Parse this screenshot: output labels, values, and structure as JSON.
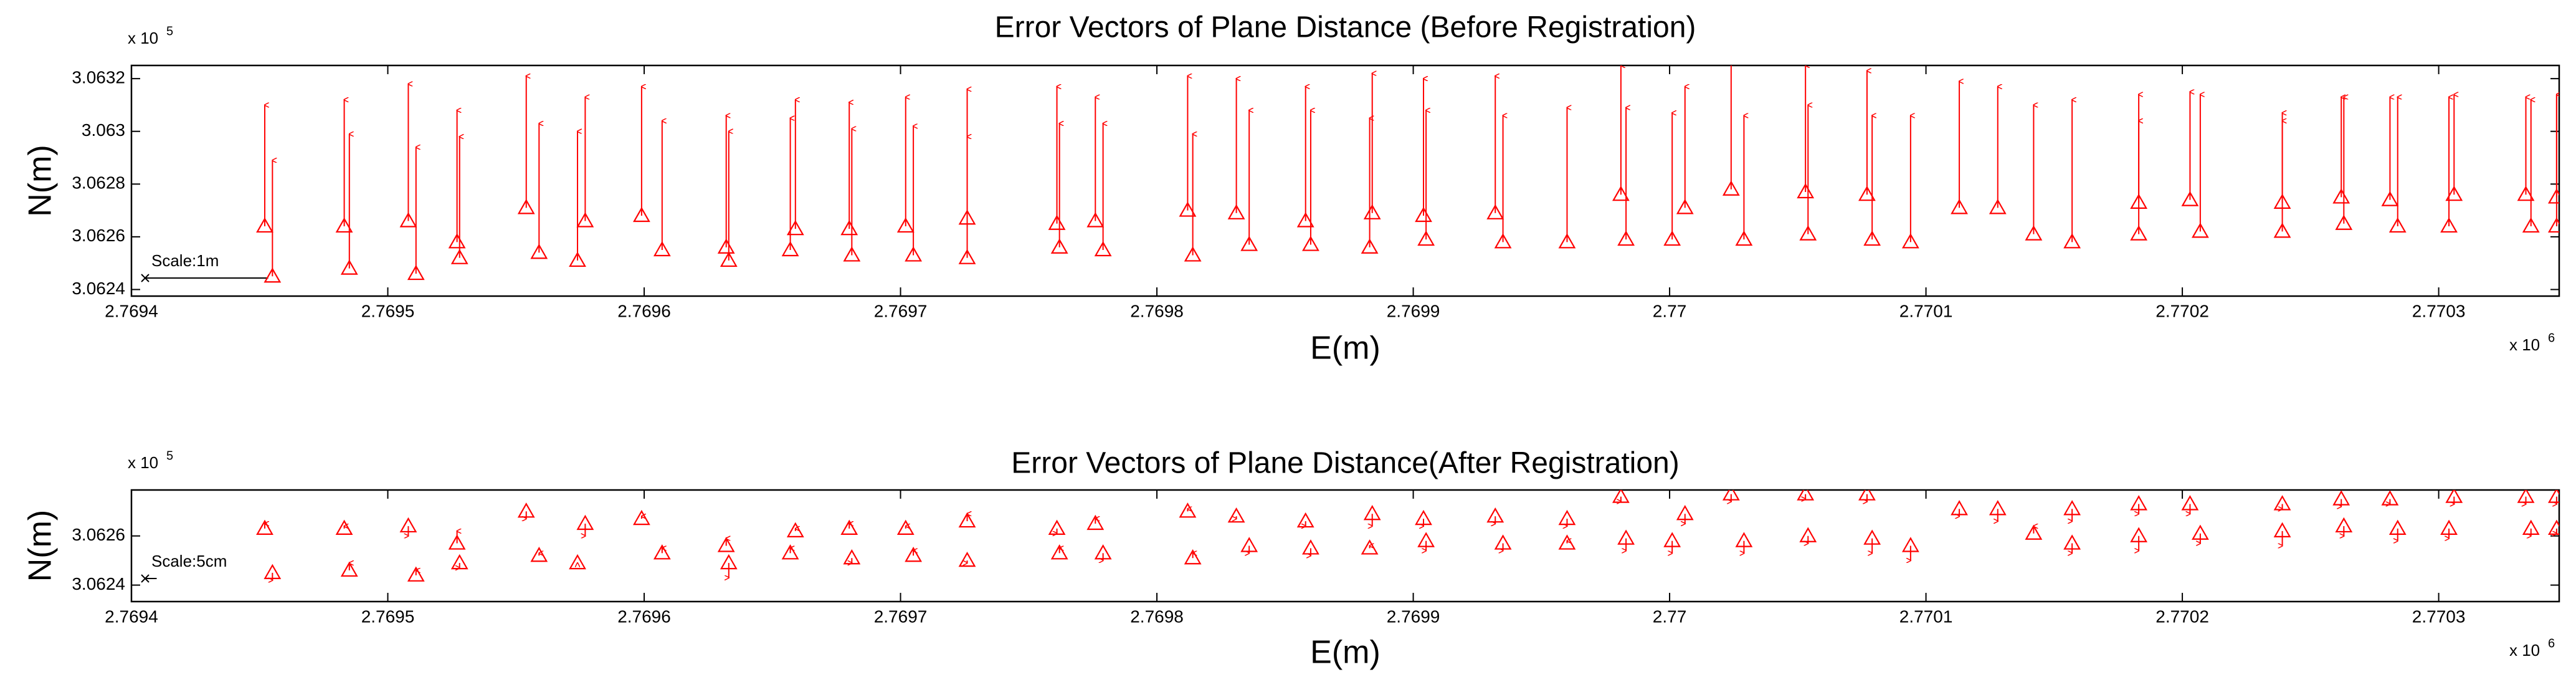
{
  "chart_data": [
    {
      "type": "quiver",
      "title": "Error Vectors of Plane Distance (Before Registration)",
      "xlabel": "E(m)",
      "ylabel": "N(m)",
      "x_multiplier": {
        "base": "x 10",
        "power": "6"
      },
      "y_multiplier": {
        "base": "x 10",
        "power": "5"
      },
      "scale_bar": {
        "label": "Scale:1m",
        "length": 48
      },
      "color": "#ff0000",
      "xlim": [
        2769400,
        2770347
      ],
      "ylim": [
        306237.5,
        306325
      ],
      "xticks": [
        {
          "value": 2769400,
          "label": "2.7694"
        },
        {
          "value": 2769500,
          "label": "2.7695"
        },
        {
          "value": 2769600,
          "label": "2.7696"
        },
        {
          "value": 2769700,
          "label": "2.7697"
        },
        {
          "value": 2769800,
          "label": "2.7698"
        },
        {
          "value": 2769900,
          "label": "2.7699"
        },
        {
          "value": 2770000,
          "label": "2.77"
        },
        {
          "value": 2770100,
          "label": "2.7701"
        },
        {
          "value": 2770200,
          "label": "2.7702"
        },
        {
          "value": 2770300,
          "label": "2.7703"
        }
      ],
      "yticks": [
        {
          "value": 306240,
          "label": "3.0624"
        },
        {
          "value": 306260,
          "label": "3.0626"
        },
        {
          "value": 306280,
          "label": "3.0628"
        },
        {
          "value": 306300,
          "label": "3.063"
        },
        {
          "value": 306320,
          "label": "3.0632"
        }
      ],
      "e": [
        2769452,
        2769455,
        2769483,
        2769485,
        2769508,
        2769511,
        2769527,
        2769528,
        2769554,
        2769559,
        2769574,
        2769577,
        2769599,
        2769607,
        2769632,
        2769633,
        2769657,
        2769659,
        2769680,
        2769681,
        2769702,
        2769705,
        2769726,
        2769726,
        2769761,
        2769762,
        2769776,
        2769779,
        2769812,
        2769814,
        2769831,
        2769836,
        2769858,
        2769860,
        2769884,
        2769883,
        2769904,
        2769905,
        2769932,
        2769935,
        2769960,
        2769981,
        2769983,
        2770001,
        2770006,
        2770024,
        2770029,
        2770053,
        2770054,
        2770077,
        2770079,
        2770094,
        2770113,
        2770128,
        2770142,
        2770157,
        2770183,
        2770183,
        2770203,
        2770207,
        2770239,
        2770239,
        2770262,
        2770263,
        2770281,
        2770284,
        2770306,
        2770304,
        2770334,
        2770336,
        2770346,
        2770346
      ],
      "n": [
        306264,
        306245,
        306264,
        306248,
        306266,
        306246,
        306258,
        306252,
        306271,
        306254,
        306251,
        306266,
        306268,
        306255,
        306256,
        306251,
        306255,
        306263,
        306263,
        306253,
        306264,
        306253,
        306267,
        306252,
        306265,
        306256,
        306266,
        306255,
        306270,
        306253,
        306269,
        306257,
        306266,
        306257,
        306269,
        306256,
        306268,
        306259,
        306269,
        306258,
        306258,
        306276,
        306259,
        306259,
        306271,
        306278,
        306259,
        306277,
        306261,
        306276,
        306259,
        306258,
        306271,
        306271,
        306261,
        306258,
        306273,
        306261,
        306274,
        306262,
        306273,
        306262,
        306275,
        306265,
        306274,
        306264,
        306276,
        306264,
        306276,
        306264,
        306275,
        306264
      ],
      "dn": [
        46,
        44,
        48,
        51,
        52,
        48,
        50,
        46,
        50,
        49,
        49,
        47,
        49,
        49,
        50,
        49,
        50,
        49,
        48,
        48,
        49,
        49,
        49,
        46,
        52,
        47,
        47,
        48,
        51,
        46,
        51,
        51,
        51,
        51,
        53,
        49,
        52,
        49,
        52,
        48,
        51,
        49,
        50,
        48,
        46,
        48,
        47,
        48,
        49,
        47,
        47,
        48,
        48,
        46,
        49,
        54,
        41,
        43,
        41,
        52,
        34,
        42,
        38,
        48,
        39,
        49,
        38,
        49,
        37,
        48,
        39,
        50
      ]
    },
    {
      "type": "quiver",
      "title": "Error Vectors of Plane Distance(After Registration)",
      "xlabel": "E(m)",
      "ylabel": "N(m)",
      "x_multiplier": {
        "base": "x 10",
        "power": "6"
      },
      "y_multiplier": {
        "base": "x 10",
        "power": "5"
      },
      "scale_bar": {
        "label": "Scale:5cm",
        "length": 4.5
      },
      "color": "#ff0000",
      "xlim": [
        2769400,
        2770347
      ],
      "ylim": [
        306233.3,
        306278.7
      ],
      "xticks": [
        {
          "value": 2769400,
          "label": "2.7694"
        },
        {
          "value": 2769500,
          "label": "2.7695"
        },
        {
          "value": 2769600,
          "label": "2.7696"
        },
        {
          "value": 2769700,
          "label": "2.7697"
        },
        {
          "value": 2769800,
          "label": "2.7698"
        },
        {
          "value": 2769900,
          "label": "2.7699"
        },
        {
          "value": 2770000,
          "label": "2.77"
        },
        {
          "value": 2770100,
          "label": "2.7701"
        },
        {
          "value": 2770200,
          "label": "2.7702"
        },
        {
          "value": 2770300,
          "label": "2.7703"
        }
      ],
      "yticks": [
        {
          "value": 306240,
          "label": "3.0624"
        },
        {
          "value": 306260,
          "label": "3.0626"
        }
      ],
      "e": [
        2769452,
        2769455,
        2769483,
        2769485,
        2769508,
        2769511,
        2769527,
        2769528,
        2769554,
        2769559,
        2769574,
        2769577,
        2769599,
        2769607,
        2769632,
        2769633,
        2769657,
        2769659,
        2769680,
        2769681,
        2769702,
        2769705,
        2769726,
        2769726,
        2769761,
        2769762,
        2769776,
        2769779,
        2769812,
        2769814,
        2769831,
        2769836,
        2769858,
        2769860,
        2769884,
        2769883,
        2769904,
        2769905,
        2769932,
        2769935,
        2769960,
        2769960,
        2769981,
        2769983,
        2770001,
        2770006,
        2770024,
        2770029,
        2770053,
        2770054,
        2770077,
        2770079,
        2770094,
        2770113,
        2770128,
        2770142,
        2770157,
        2770157,
        2770183,
        2770183,
        2770203,
        2770207,
        2770239,
        2770239,
        2770262,
        2770263,
        2770281,
        2770284,
        2770306,
        2770304,
        2770334,
        2770336,
        2770346,
        2770346
      ],
      "n": [
        306263,
        306245,
        306263,
        306246,
        306264,
        306244,
        306257,
        306249,
        306270,
        306252,
        306249,
        306265,
        306267,
        306253,
        306256,
        306249,
        306253,
        306262,
        306263,
        306251,
        306263,
        306252,
        306266,
        306250,
        306263,
        306253,
        306265,
        306253,
        306270,
        306251,
        306268,
        306256,
        306266,
        306255,
        306269,
        306255,
        306267,
        306258,
        306268,
        306257,
        306267,
        306257,
        306276,
        306259,
        306258,
        306269,
        306277,
        306258,
        306277,
        306260,
        306277,
        306259,
        306256,
        306271,
        306271,
        306261,
        306271,
        306257,
        306273,
        306260,
        306273,
        306261,
        306273,
        306262,
        306275,
        306264,
        306275,
        306263,
        306276,
        306263,
        306276,
        306263,
        306276,
        306263
      ],
      "dn": [
        2,
        -3,
        1,
        3,
        -4,
        2,
        5,
        -2,
        -3,
        1,
        0,
        -5,
        1,
        2,
        3,
        -6,
        2,
        1,
        2,
        -2,
        1,
        2,
        3,
        -1,
        -2,
        2,
        2,
        -3,
        1,
        2,
        -1,
        -3,
        -2,
        -3,
        -5,
        1,
        -3,
        -4,
        -3,
        -3,
        -3,
        1,
        -2,
        -5,
        -5,
        -4,
        -3,
        -5,
        -2,
        -3,
        -3,
        -6,
        -6,
        -3,
        -5,
        3,
        -5,
        -4,
        -4,
        -6,
        -4,
        -4,
        -2,
        -6,
        -3,
        -4,
        -2,
        -5,
        -3,
        -4,
        -3,
        -3,
        -3,
        -2
      ]
    }
  ]
}
